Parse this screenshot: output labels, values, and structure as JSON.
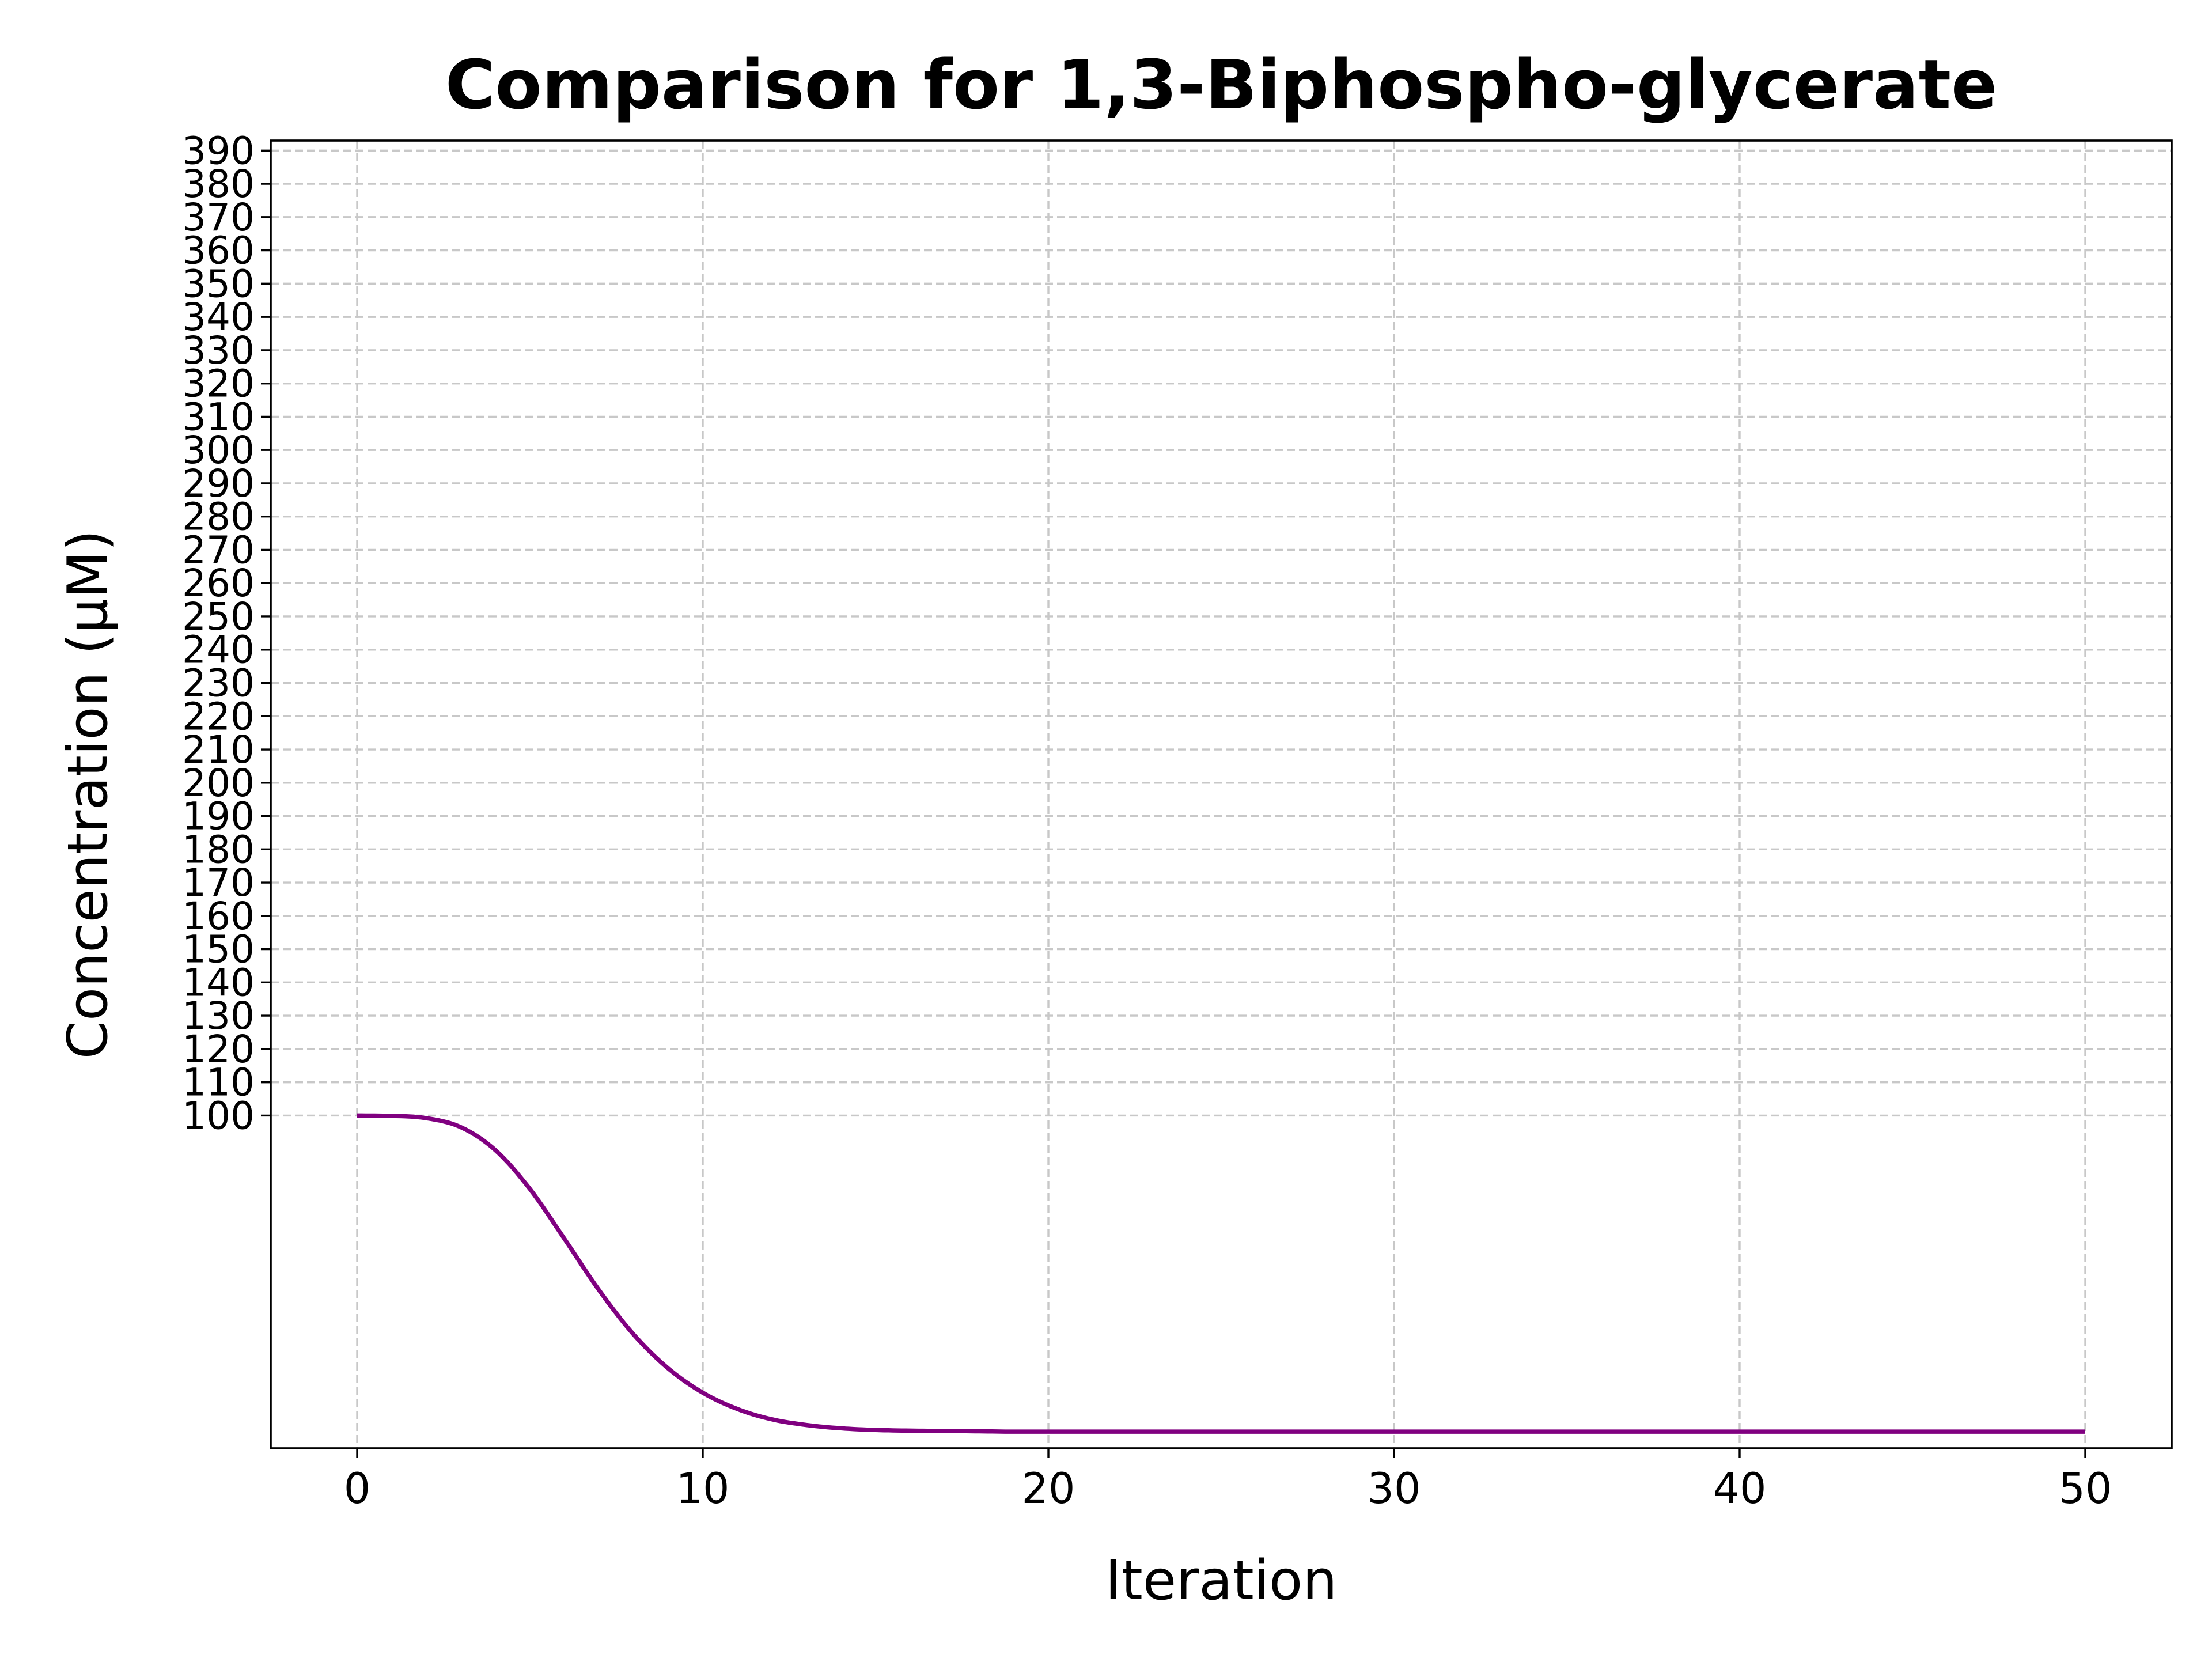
{
  "chart_data": {
    "type": "line",
    "title": "Comparison for 1,3-Biphospho-glycerate",
    "xlabel": "Iteration",
    "ylabel": "Concentration (μM)",
    "xlim": [
      -2.5,
      52.5
    ],
    "ylim": [
      0,
      393
    ],
    "x_ticks": [
      0,
      10,
      20,
      30,
      40,
      50
    ],
    "y_ticks": [
      100,
      110,
      120,
      130,
      140,
      150,
      160,
      170,
      180,
      190,
      200,
      210,
      220,
      230,
      240,
      250,
      260,
      270,
      280,
      290,
      300,
      310,
      320,
      330,
      340,
      350,
      360,
      370,
      380,
      390
    ],
    "grid": true,
    "line_color": "#800080",
    "series": [
      {
        "x": [
          0,
          1,
          2,
          3,
          4,
          5,
          6,
          7,
          8,
          9,
          10,
          11,
          12,
          13,
          14,
          15,
          16,
          17,
          18,
          19,
          20,
          22,
          24,
          26,
          28,
          30,
          35,
          40,
          45,
          50
        ],
        "values": [
          100,
          99.9,
          99.2,
          96.5,
          89.6,
          77.9,
          62.9,
          47.5,
          34.2,
          24.0,
          16.7,
          11.8,
          8.7,
          7.0,
          6.0,
          5.5,
          5.3,
          5.2,
          5.1,
          5.0,
          5.0,
          5.0,
          5.0,
          5.0,
          5.0,
          5.0,
          5.0,
          5.0,
          5.0,
          5.0
        ]
      }
    ]
  }
}
